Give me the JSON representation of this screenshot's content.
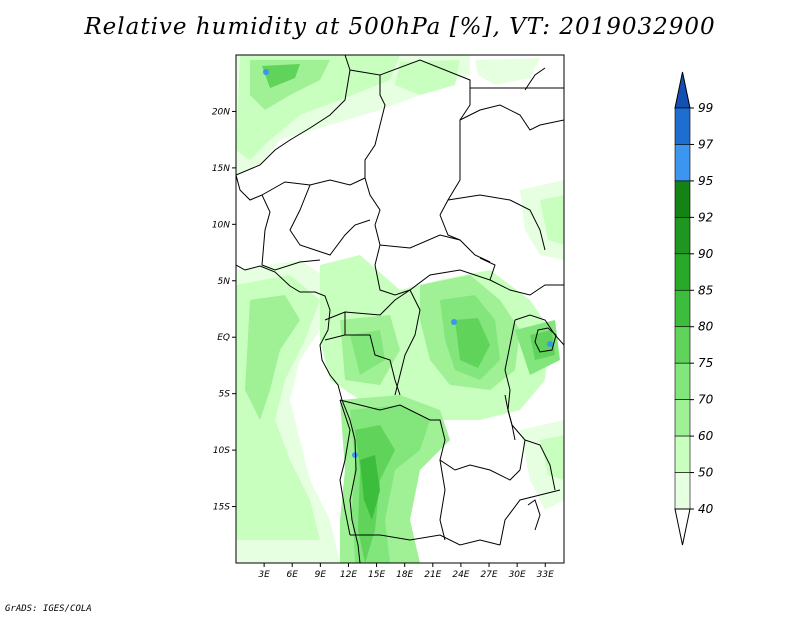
{
  "title": "Relative humidity at 500hPa [%], VT: 2019032900",
  "credit": "GrADS: IGES/COLA",
  "map": {
    "lon_range": [
      0,
      35
    ],
    "lat_range": [
      -20,
      25
    ],
    "lat_ticks": [
      {
        "value": 20,
        "label": "20N"
      },
      {
        "value": 15,
        "label": "15N"
      },
      {
        "value": 10,
        "label": "10N"
      },
      {
        "value": 5,
        "label": "5N"
      },
      {
        "value": 0,
        "label": "EQ"
      },
      {
        "value": -5,
        "label": "5S"
      },
      {
        "value": -10,
        "label": "10S"
      },
      {
        "value": -15,
        "label": "15S"
      }
    ],
    "lon_ticks": [
      {
        "value": 3,
        "label": "3E"
      },
      {
        "value": 6,
        "label": "6E"
      },
      {
        "value": 9,
        "label": "9E"
      },
      {
        "value": 12,
        "label": "12E"
      },
      {
        "value": 15,
        "label": "15E"
      },
      {
        "value": 18,
        "label": "18E"
      },
      {
        "value": 21,
        "label": "21E"
      },
      {
        "value": 24,
        "label": "24E"
      },
      {
        "value": 27,
        "label": "27E"
      },
      {
        "value": 30,
        "label": "30E"
      },
      {
        "value": 33,
        "label": "33E"
      }
    ]
  },
  "colorbar": {
    "levels": [
      "40",
      "50",
      "60",
      "70",
      "75",
      "80",
      "85",
      "90",
      "92",
      "95",
      "97",
      "99"
    ],
    "colors": [
      "#ffffff",
      "#e6ffe1",
      "#c8ffbe",
      "#a0f096",
      "#82e67c",
      "#5fd35a",
      "#3cbe3c",
      "#28aa28",
      "#1e9620",
      "#148214",
      "#3c96f0",
      "#1e6ed2",
      "#1450b4"
    ]
  }
}
